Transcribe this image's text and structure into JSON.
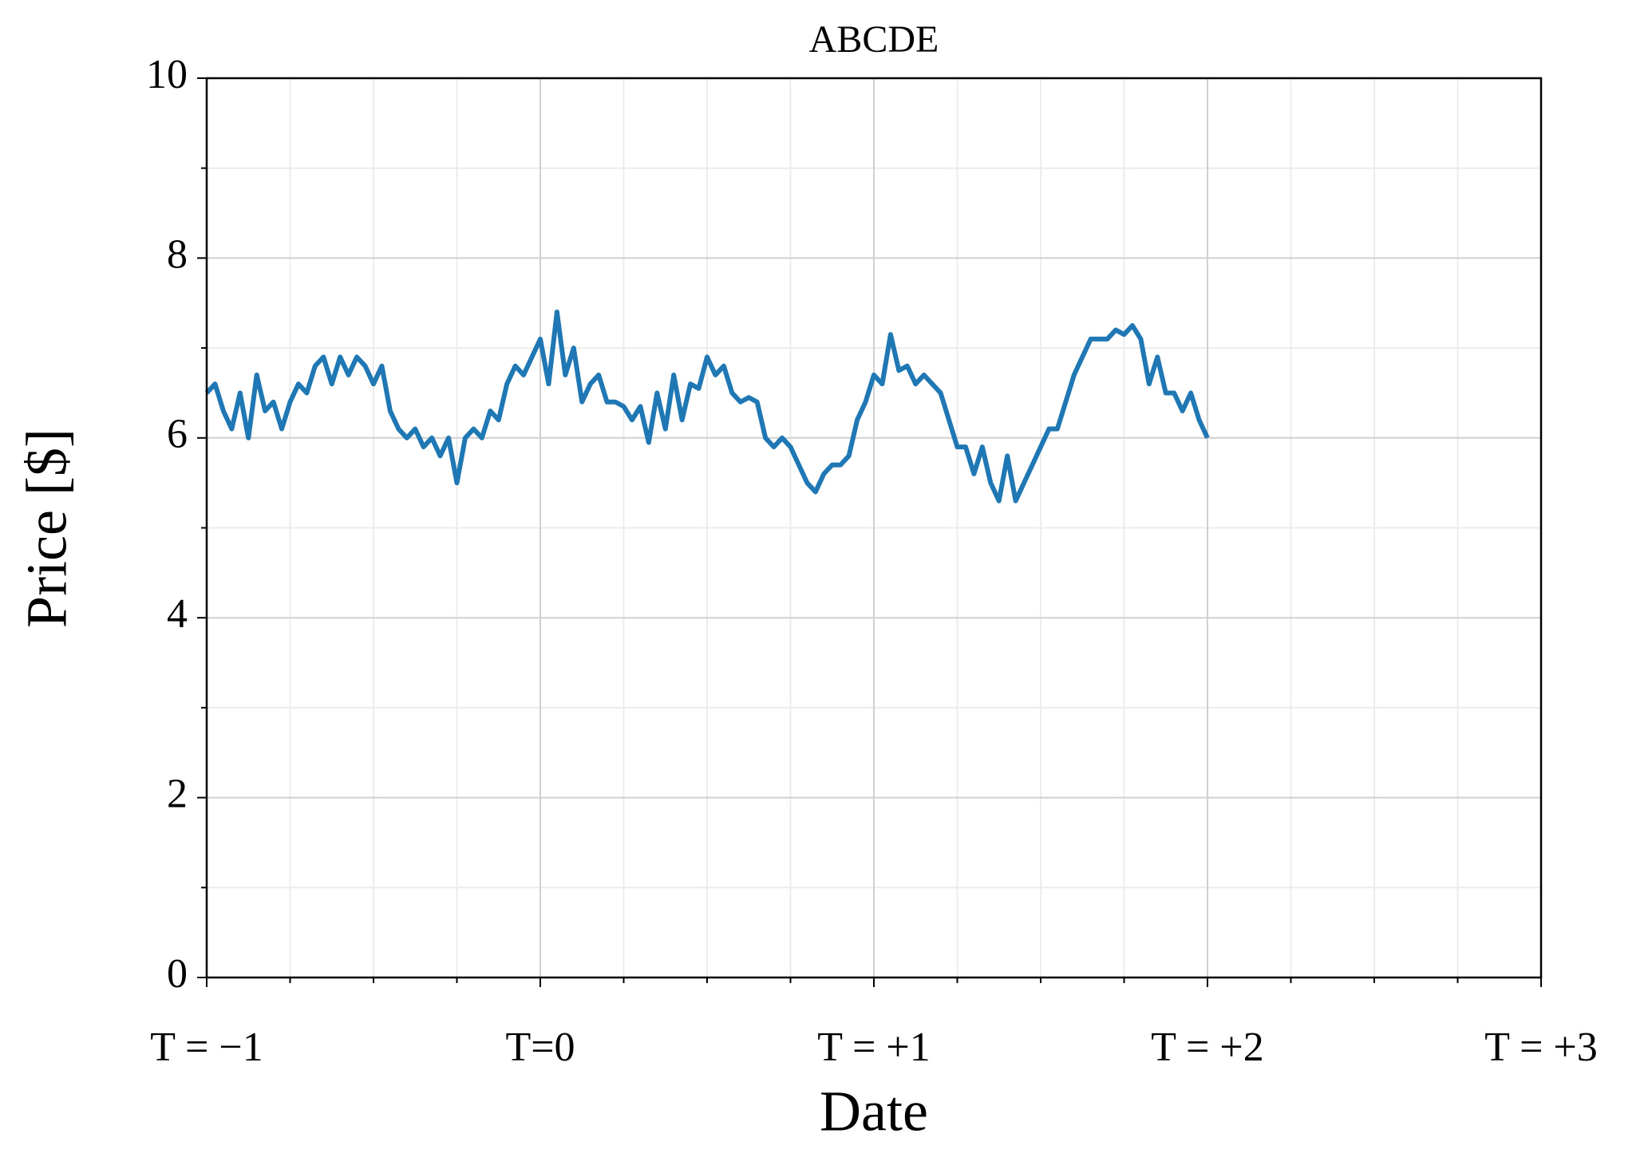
{
  "chart_data": {
    "type": "line",
    "title": "ABCDE",
    "xlabel": "Date",
    "ylabel": "Price [$]",
    "x": [
      -1,
      -0.975,
      -0.95,
      -0.925,
      -0.9,
      -0.875,
      -0.85,
      -0.825,
      -0.8,
      -0.775,
      -0.75,
      -0.725,
      -0.7,
      -0.675,
      -0.65,
      -0.625,
      -0.6,
      -0.575,
      -0.55,
      -0.525,
      -0.5,
      -0.475,
      -0.45,
      -0.425,
      -0.4,
      -0.375,
      -0.35,
      -0.325,
      -0.3,
      -0.275,
      -0.25,
      -0.225,
      -0.2,
      -0.175,
      -0.15,
      -0.125,
      -0.1,
      -0.075,
      -0.05,
      -0.025,
      0,
      0.025,
      0.05,
      0.075,
      0.1,
      0.125,
      0.15,
      0.175,
      0.2,
      0.225,
      0.25,
      0.275,
      0.3,
      0.325,
      0.35,
      0.375,
      0.4,
      0.425,
      0.45,
      0.475,
      0.5,
      0.525,
      0.55,
      0.575,
      0.6,
      0.625,
      0.65,
      0.675,
      0.7,
      0.725,
      0.75,
      0.775,
      0.8,
      0.825,
      0.85,
      0.875,
      0.9,
      0.925,
      0.95,
      0.975,
      1,
      1.025,
      1.05,
      1.075,
      1.1,
      1.125,
      1.15,
      1.175,
      1.2,
      1.225,
      1.25,
      1.275,
      1.3,
      1.325,
      1.35,
      1.375,
      1.4,
      1.425,
      1.45,
      1.475,
      1.5,
      1.525,
      1.55,
      1.575,
      1.6,
      1.625,
      1.65,
      1.675,
      1.7,
      1.725,
      1.75,
      1.775,
      1.8,
      1.825,
      1.85,
      1.875,
      1.9,
      1.925,
      1.95,
      1.975,
      2
    ],
    "values": [
      6.5,
      6.6,
      6.3,
      6.1,
      6.5,
      6.0,
      6.7,
      6.3,
      6.4,
      6.1,
      6.4,
      6.6,
      6.5,
      6.8,
      6.9,
      6.6,
      6.9,
      6.7,
      6.9,
      6.8,
      6.6,
      6.8,
      6.3,
      6.1,
      6.0,
      6.1,
      5.9,
      6.0,
      5.8,
      6.0,
      5.5,
      6.0,
      6.1,
      6.0,
      6.3,
      6.2,
      6.6,
      6.8,
      6.7,
      6.9,
      7.1,
      6.6,
      7.4,
      6.7,
      7.0,
      6.4,
      6.6,
      6.7,
      6.4,
      6.4,
      6.35,
      6.2,
      6.35,
      5.95,
      6.5,
      6.1,
      6.7,
      6.2,
      6.6,
      6.55,
      6.9,
      6.7,
      6.8,
      6.5,
      6.4,
      6.45,
      6.4,
      6.0,
      5.9,
      6.0,
      5.9,
      5.7,
      5.5,
      5.4,
      5.6,
      5.7,
      5.7,
      5.8,
      6.2,
      6.4,
      6.7,
      6.6,
      7.15,
      6.75,
      6.8,
      6.6,
      6.7,
      6.6,
      6.5,
      6.2,
      5.9,
      5.9,
      5.6,
      5.9,
      5.5,
      5.3,
      5.8,
      5.3,
      5.5,
      5.7,
      5.9,
      6.1,
      6.1,
      6.4,
      6.7,
      6.9,
      7.1,
      7.1,
      7.1,
      7.2,
      7.15,
      7.25,
      7.1,
      6.6,
      6.9,
      6.5,
      6.5,
      6.3,
      6.5,
      6.2,
      6.0
    ],
    "color": "#1f77b4",
    "xlim": [
      -1,
      3
    ],
    "xticks": [
      {
        "value": -1,
        "label": "T = −1"
      },
      {
        "value": 0,
        "label": "T=0"
      },
      {
        "value": 1,
        "label": "T = +1"
      },
      {
        "value": 2,
        "label": "T = +2"
      },
      {
        "value": 3,
        "label": "T = +3"
      }
    ],
    "xminorticks": [
      -0.75,
      -0.5,
      -0.25,
      0.25,
      0.5,
      0.75,
      1.25,
      1.5,
      1.75,
      2.25,
      2.5,
      2.75
    ],
    "ylim": [
      0,
      10
    ],
    "yticks": [
      0,
      2,
      4,
      6,
      8,
      10
    ],
    "yminorticks": [
      1,
      3,
      5,
      7,
      9
    ],
    "grid": true
  }
}
